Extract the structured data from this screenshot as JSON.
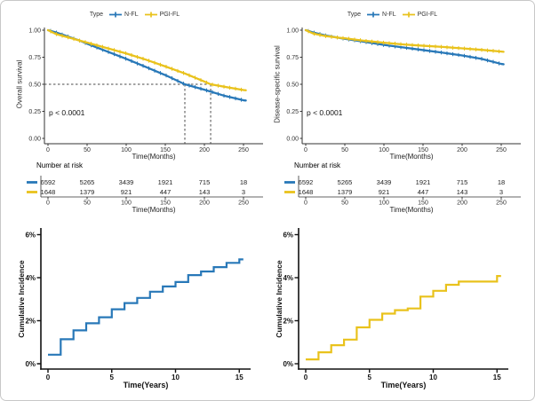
{
  "colors": {
    "nfl": "#2878b8",
    "pgifl": "#e9c21c",
    "dashed": "#4a4a4a",
    "axis_top": "#333333",
    "axis_bottom": "#111111"
  },
  "legend": {
    "title": "Type",
    "items": [
      {
        "label": "N-FL",
        "color_key": "nfl"
      },
      {
        "label": "PGI-FL",
        "color_key": "pgifl"
      }
    ]
  },
  "risk_table": {
    "title": "Number at risk",
    "xlabel": "Time(Months)",
    "xticks": [
      0,
      50,
      100,
      150,
      200,
      250
    ],
    "rows": [
      {
        "color_key": "nfl",
        "values": [
          6592,
          5265,
          3439,
          1921,
          715,
          18
        ]
      },
      {
        "color_key": "pgifl",
        "values": [
          1648,
          1379,
          921,
          447,
          143,
          3
        ]
      }
    ]
  },
  "chart_data": [
    {
      "id": "overall_survival",
      "type": "line",
      "ylabel": "Overall survival",
      "xlabel": "Time(Months)",
      "pvalue": "p < 0.0001",
      "xlim": [
        0,
        253
      ],
      "ylim": [
        0,
        1
      ],
      "xticks": [
        0,
        50,
        100,
        150,
        200,
        250
      ],
      "yticks": [
        1.0,
        0.75,
        0.5,
        0.25,
        0.0
      ],
      "legend_position": "top",
      "median_lines": {
        "y": 0.5,
        "x": [
          175,
          208
        ]
      },
      "series": [
        {
          "name": "N-FL",
          "color_key": "nfl",
          "x": [
            0,
            10,
            20,
            30,
            40,
            50,
            75,
            100,
            125,
            150,
            175,
            200,
            225,
            250,
            253
          ],
          "y": [
            1.0,
            0.98,
            0.955,
            0.93,
            0.905,
            0.875,
            0.805,
            0.735,
            0.66,
            0.585,
            0.5,
            0.45,
            0.395,
            0.352,
            0.35
          ]
        },
        {
          "name": "PGI-FL",
          "color_key": "pgifl",
          "x": [
            0,
            10,
            20,
            30,
            40,
            50,
            75,
            100,
            125,
            150,
            175,
            200,
            208,
            225,
            250,
            253
          ],
          "y": [
            1.0,
            0.965,
            0.945,
            0.925,
            0.905,
            0.885,
            0.835,
            0.785,
            0.728,
            0.665,
            0.6,
            0.525,
            0.5,
            0.478,
            0.447,
            0.445
          ]
        }
      ]
    },
    {
      "id": "disease_specific_survival",
      "type": "line",
      "ylabel": "Disease-specific survival",
      "xlabel": "Time(Months)",
      "pvalue": "p < 0.0001",
      "xlim": [
        0,
        253
      ],
      "ylim": [
        0,
        1
      ],
      "xticks": [
        0,
        50,
        100,
        150,
        200,
        250
      ],
      "yticks": [
        1.0,
        0.75,
        0.5,
        0.25,
        0.0
      ],
      "legend_position": "top",
      "series": [
        {
          "name": "N-FL",
          "color_key": "nfl",
          "x": [
            0,
            10,
            25,
            40,
            50,
            75,
            100,
            125,
            150,
            175,
            200,
            225,
            250,
            253
          ],
          "y": [
            1.0,
            0.978,
            0.952,
            0.932,
            0.92,
            0.892,
            0.864,
            0.84,
            0.816,
            0.792,
            0.766,
            0.735,
            0.688,
            0.685
          ]
        },
        {
          "name": "PGI-FL",
          "color_key": "pgifl",
          "x": [
            0,
            10,
            25,
            40,
            50,
            75,
            100,
            125,
            150,
            175,
            200,
            225,
            250,
            253
          ],
          "y": [
            1.0,
            0.968,
            0.946,
            0.932,
            0.925,
            0.902,
            0.884,
            0.868,
            0.856,
            0.845,
            0.832,
            0.818,
            0.802,
            0.8
          ]
        }
      ]
    },
    {
      "id": "cumulative_incidence_nfl",
      "type": "line",
      "step": true,
      "ylabel": "Cumulative Incidence",
      "xlabel": "Time(Years)",
      "xlim": [
        0,
        15.3
      ],
      "ylim": [
        0,
        6
      ],
      "xticks": [
        0,
        5,
        10,
        15
      ],
      "yticks": [
        0,
        2,
        4,
        6
      ],
      "ytick_suffix": "%",
      "series": [
        {
          "name": "N-FL",
          "color_key": "nfl",
          "x": [
            0,
            1,
            2,
            3,
            4,
            5,
            6,
            7,
            8,
            9,
            10,
            11,
            12,
            13,
            14,
            15
          ],
          "y": [
            0.42,
            1.14,
            1.55,
            1.88,
            2.16,
            2.53,
            2.82,
            3.06,
            3.35,
            3.59,
            3.8,
            4.12,
            4.29,
            4.49,
            4.69,
            4.85
          ]
        }
      ]
    },
    {
      "id": "cumulative_incidence_pgifl",
      "type": "line",
      "step": true,
      "ylabel": "Cumulative Incidence",
      "xlabel": "Time(Years)",
      "xlim": [
        0,
        15.3
      ],
      "ylim": [
        0,
        6
      ],
      "xticks": [
        0,
        5,
        10,
        15
      ],
      "yticks": [
        0,
        2,
        4,
        6
      ],
      "ytick_suffix": "%",
      "series": [
        {
          "name": "PGI-FL",
          "color_key": "pgifl",
          "x": [
            0,
            1,
            2,
            3,
            4,
            5,
            6,
            7,
            8,
            9,
            10,
            11,
            12,
            13,
            14,
            15
          ],
          "y": [
            0.2,
            0.53,
            0.86,
            1.12,
            1.69,
            2.04,
            2.33,
            2.49,
            2.57,
            3.12,
            3.39,
            3.67,
            3.82,
            3.82,
            3.82,
            4.08
          ]
        }
      ]
    }
  ]
}
